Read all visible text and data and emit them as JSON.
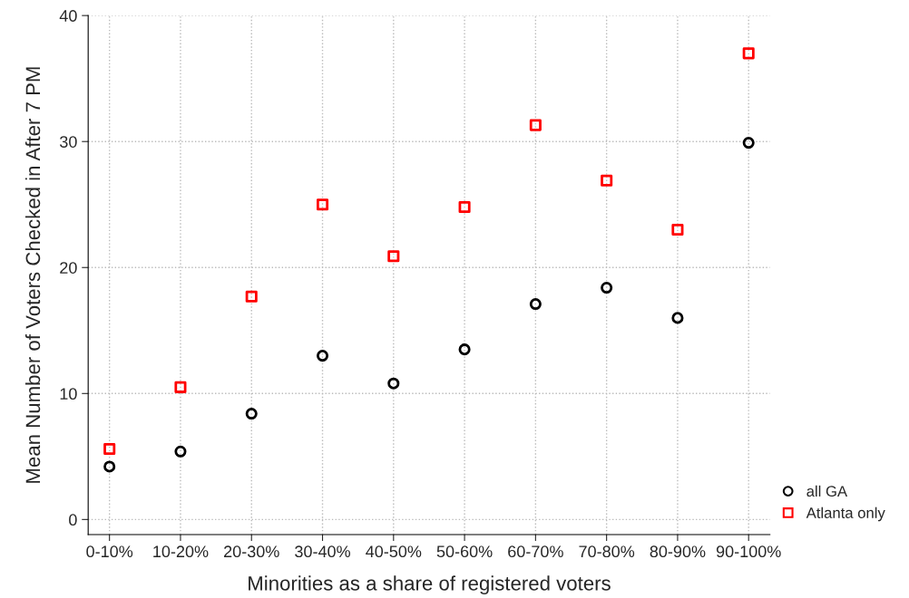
{
  "chart_data": {
    "type": "scatter",
    "xlabel": "Minorities as a share of registered voters",
    "ylabel": "Mean Number of Voters Checked in After 7 PM",
    "categories": [
      "0-10%",
      "10-20%",
      "20-30%",
      "30-40%",
      "40-50%",
      "50-60%",
      "60-70%",
      "70-80%",
      "80-90%",
      "90-100%"
    ],
    "series": [
      {
        "name": "all GA",
        "color": "#000000",
        "marker": "circle",
        "values": [
          4.2,
          5.4,
          8.4,
          13.0,
          10.8,
          13.5,
          17.1,
          18.4,
          16.0,
          29.9
        ]
      },
      {
        "name": "Atlanta only",
        "color": "#ff0000",
        "marker": "square",
        "values": [
          5.6,
          10.5,
          17.7,
          25.0,
          20.9,
          24.8,
          31.3,
          26.9,
          23.0,
          37.0
        ]
      }
    ],
    "ylim": [
      -1.2,
      40
    ],
    "yticks": [
      0,
      10,
      20,
      30,
      40
    ],
    "grid": true,
    "legend": "right"
  }
}
